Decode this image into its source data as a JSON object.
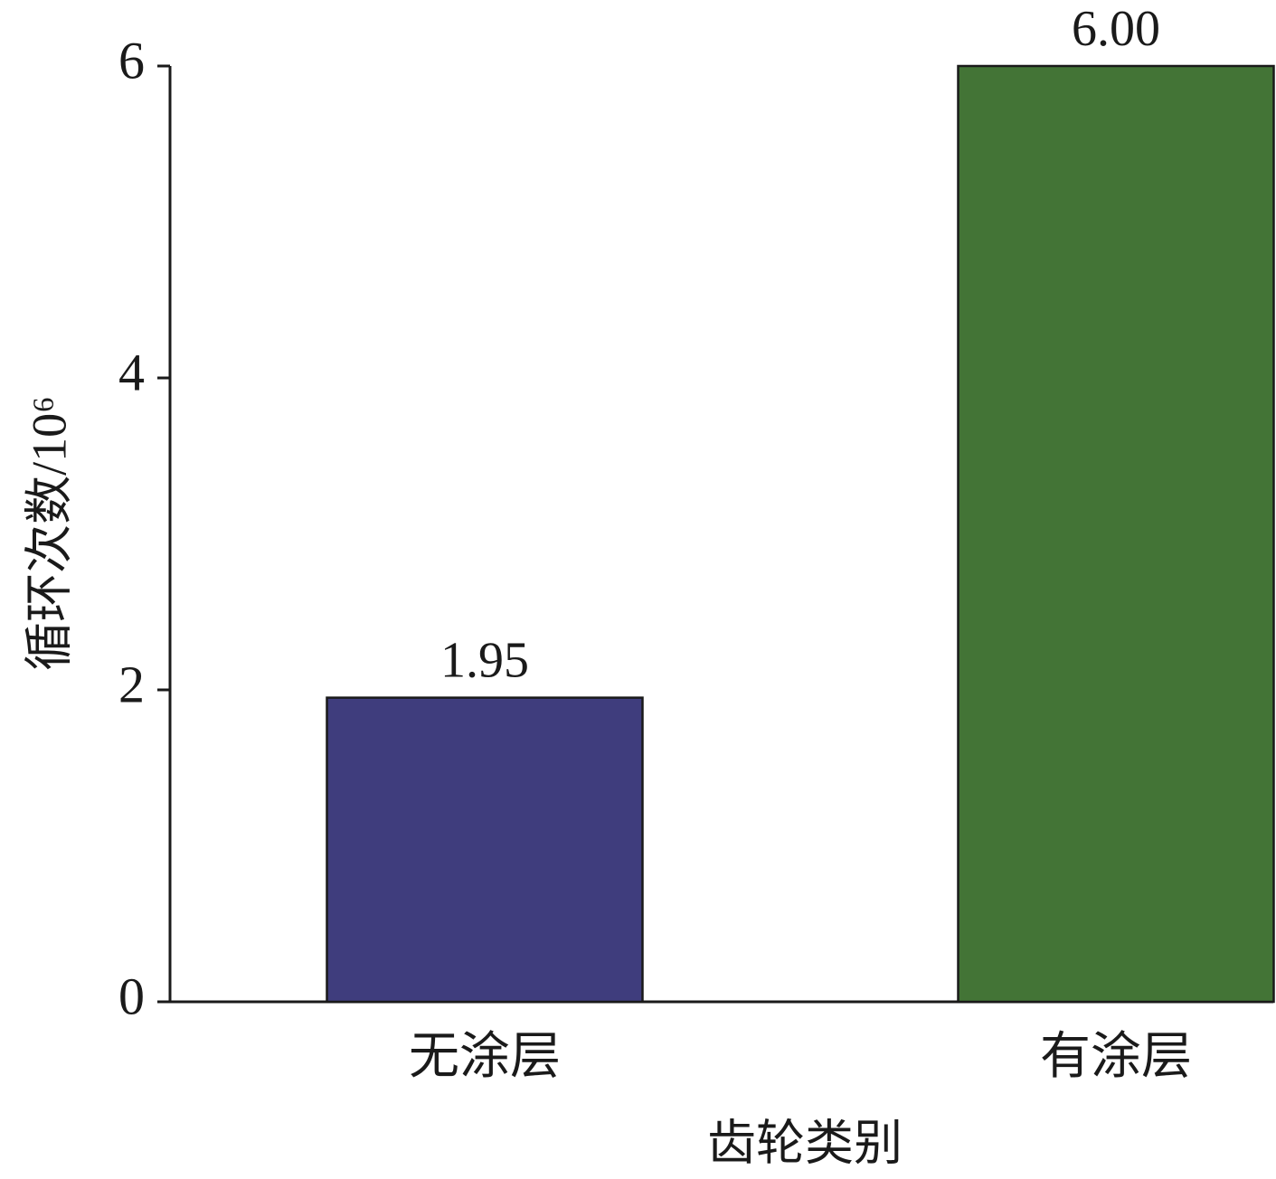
{
  "chart_data": {
    "type": "bar",
    "categories": [
      "无涂层",
      "有涂层"
    ],
    "values": [
      1.95,
      6
    ],
    "value_labels": [
      "1.95",
      "6.00"
    ],
    "colors": [
      "#3f3d7d",
      "#437436"
    ],
    "xlabel": "齿轮类别",
    "ylabel": "循环次数/10⁶",
    "ylim": [
      0,
      6
    ],
    "yticks": [
      0,
      2,
      4,
      6
    ],
    "grid": false
  }
}
